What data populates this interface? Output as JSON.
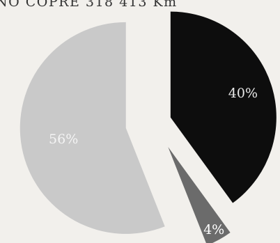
{
  "header": {
    "title": "NO COPRE 318 413 Km"
  },
  "chart_data": {
    "type": "pie",
    "title": "NO COPRE 318 413 Km",
    "slices": [
      {
        "label": "40%",
        "value": 40,
        "color": "#0d0d0d",
        "label_color": "#e8e8e8"
      },
      {
        "label": "4%",
        "value": 4,
        "color": "#6b6b6b",
        "label_color": "#ffffff"
      },
      {
        "label": "56%",
        "value": 56,
        "color": "#c9c9c9",
        "label_color": "#f4f4f4"
      }
    ],
    "legend": "none",
    "exploded": true
  }
}
